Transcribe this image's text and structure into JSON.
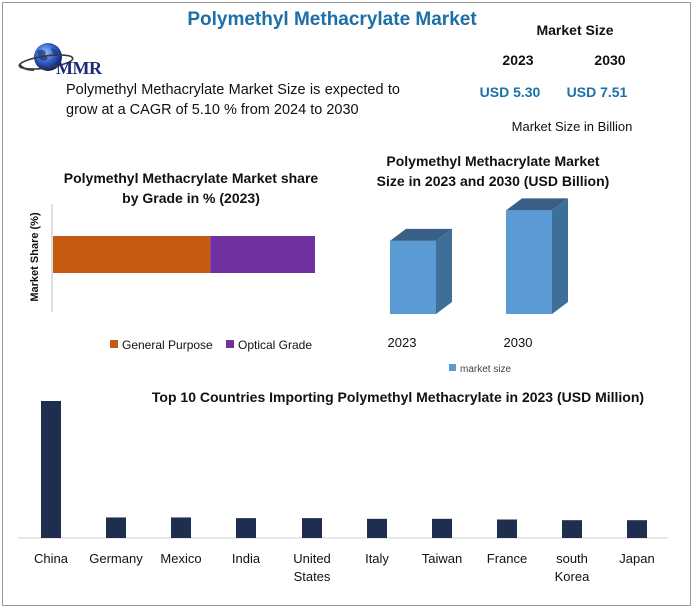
{
  "page": {
    "title": "Polymethyl Methacrylate Market",
    "logo_text": "MMR",
    "summary": "Polymethyl Methacrylate Market Size is expected to grow at a CAGR of 5.10 % from 2024 to 2030"
  },
  "market_size": {
    "title": "Market Size",
    "year_1": "2023",
    "year_2": "2030",
    "value_1": "USD 5.30",
    "value_2": "USD 7.51",
    "unit_note": "Market Size in Billion"
  },
  "colors": {
    "title_blue": "#1d6fa8",
    "general_purpose": "#c55a11",
    "optical_grade": "#7030a0",
    "market_size_bar": "#5b9bd5",
    "importer_bar": "#1f2d4e"
  },
  "chart_data": [
    {
      "type": "bar",
      "orientation": "horizontal-stacked",
      "title": "Polymethyl Methacrylate Market share by Grade in % (2023)",
      "ylabel": "Market Share (%)",
      "xlabel": "",
      "series": [
        {
          "name": "General Purpose",
          "values": [
            60
          ]
        },
        {
          "name": "Optical Grade",
          "values": [
            40
          ]
        }
      ],
      "legend": "bottom"
    },
    {
      "type": "bar",
      "style": "3d-column",
      "title": "Polymethyl Methacrylate Market Size in 2023 and 2030 (USD Billion)",
      "categories": [
        "2023",
        "2030"
      ],
      "values": [
        5.3,
        7.51
      ],
      "legend_label": "market size",
      "legend": "bottom"
    },
    {
      "type": "bar",
      "title": "Top 10 Countries Importing Polymethyl Methacrylate in 2023 (USD Million)",
      "categories": [
        "China",
        "Germany",
        "Mexico",
        "India",
        "United States",
        "Italy",
        "Taiwan",
        "France",
        "south Korea",
        "Japan"
      ],
      "values": [
        100,
        15,
        15,
        14.5,
        14.5,
        14,
        14,
        13.5,
        13,
        13
      ]
    }
  ]
}
